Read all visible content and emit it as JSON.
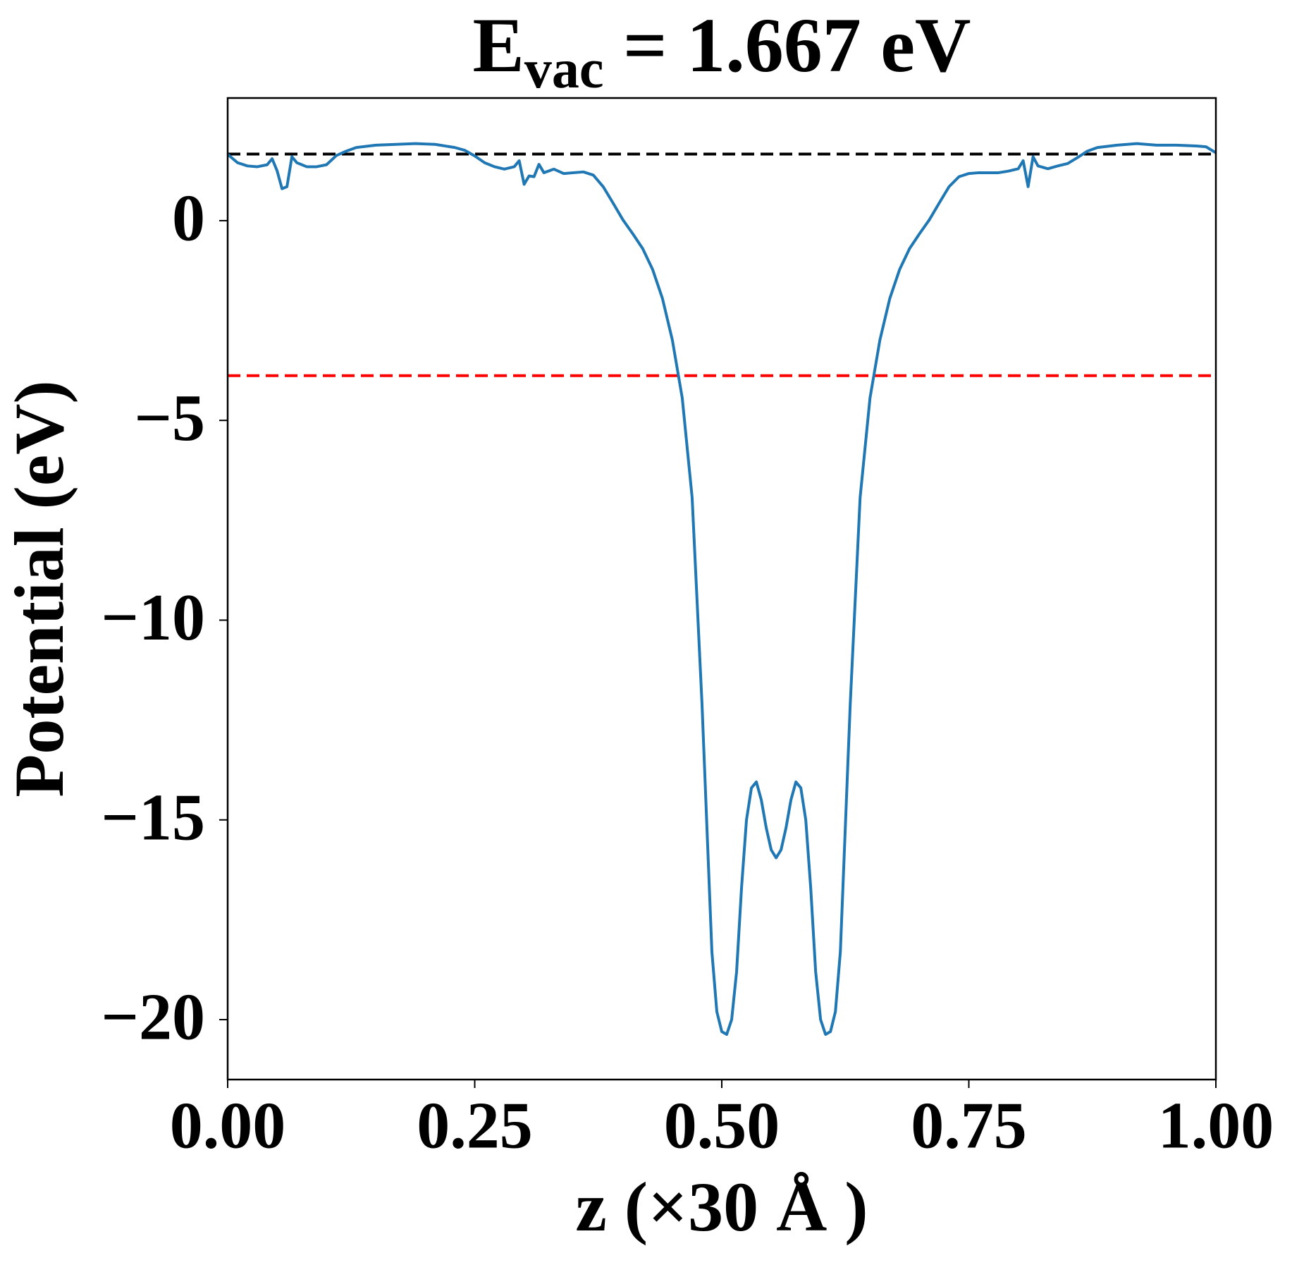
{
  "chart_data": {
    "type": "line",
    "title": {
      "base": "E",
      "sub": "vac",
      "rest": " = 1.667 eV"
    },
    "x_label": "z (×30 Å )",
    "y_label": "Potential (eV)",
    "x": [
      0,
      0.01,
      0.02,
      0.03,
      0.04,
      0.045,
      0.05,
      0.055,
      0.06,
      0.065,
      0.07,
      0.08,
      0.09,
      0.1,
      0.11,
      0.12,
      0.13,
      0.15,
      0.17,
      0.19,
      0.21,
      0.23,
      0.24,
      0.25,
      0.26,
      0.27,
      0.28,
      0.29,
      0.295,
      0.3,
      0.305,
      0.31,
      0.315,
      0.32,
      0.33,
      0.34,
      0.35,
      0.36,
      0.37,
      0.38,
      0.39,
      0.4,
      0.41,
      0.42,
      0.43,
      0.44,
      0.45,
      0.46,
      0.47,
      0.48,
      0.485,
      0.49,
      0.495,
      0.5,
      0.505,
      0.51,
      0.515,
      0.52,
      0.525,
      0.53,
      0.535,
      0.54,
      0.545,
      0.55,
      0.555,
      0.56,
      0.565,
      0.57,
      0.575,
      0.58,
      0.585,
      0.59,
      0.595,
      0.6,
      0.605,
      0.61,
      0.615,
      0.62,
      0.625,
      0.63,
      0.64,
      0.65,
      0.66,
      0.67,
      0.68,
      0.69,
      0.7,
      0.71,
      0.72,
      0.73,
      0.74,
      0.75,
      0.76,
      0.78,
      0.79,
      0.8,
      0.805,
      0.81,
      0.815,
      0.82,
      0.83,
      0.84,
      0.85,
      0.86,
      0.87,
      0.88,
      0.9,
      0.92,
      0.94,
      0.96,
      0.98,
      0.99,
      1.0
    ],
    "series": [
      {
        "color": "#1f77b4",
        "values": [
          1.66,
          1.45,
          1.37,
          1.35,
          1.4,
          1.55,
          1.25,
          0.8,
          0.85,
          1.6,
          1.45,
          1.35,
          1.35,
          1.4,
          1.63,
          1.74,
          1.83,
          1.89,
          1.91,
          1.93,
          1.91,
          1.83,
          1.76,
          1.62,
          1.45,
          1.35,
          1.29,
          1.35,
          1.5,
          0.91,
          1.12,
          1.1,
          1.41,
          1.2,
          1.29,
          1.18,
          1.2,
          1.22,
          1.14,
          0.85,
          0.44,
          0.02,
          -0.33,
          -0.7,
          -1.22,
          -1.95,
          -2.99,
          -4.44,
          -6.93,
          -12.1,
          -15.2,
          -18.3,
          -19.8,
          -20.3,
          -20.37,
          -20.0,
          -18.8,
          -16.7,
          -15.0,
          -14.2,
          -14.05,
          -14.5,
          -15.2,
          -15.75,
          -15.95,
          -15.75,
          -15.2,
          -14.5,
          -14.05,
          -14.2,
          -15.0,
          -16.7,
          -18.8,
          -20.0,
          -20.37,
          -20.3,
          -19.8,
          -18.3,
          -15.2,
          -12.1,
          -6.93,
          -4.44,
          -2.99,
          -1.95,
          -1.22,
          -0.7,
          -0.33,
          0.02,
          0.44,
          0.85,
          1.1,
          1.18,
          1.2,
          1.2,
          1.24,
          1.3,
          1.5,
          0.85,
          1.6,
          1.37,
          1.3,
          1.37,
          1.43,
          1.58,
          1.74,
          1.83,
          1.89,
          1.93,
          1.89,
          1.89,
          1.87,
          1.85,
          1.7
        ]
      }
    ],
    "hlines": [
      {
        "value": 1.667,
        "color": "#000000"
      },
      {
        "value": -3.88,
        "color": "#ff0000"
      }
    ],
    "xlim": [
      0,
      1
    ],
    "ylim": [
      -21.5,
      3.07
    ],
    "xticks": [
      {
        "value": 0,
        "label": "0.00"
      },
      {
        "value": 0.25,
        "label": "0.25"
      },
      {
        "value": 0.5,
        "label": "0.50"
      },
      {
        "value": 0.75,
        "label": "0.75"
      },
      {
        "value": 1,
        "label": "1.00"
      }
    ],
    "yticks": [
      0,
      {
        "value": -5,
        "label": "−5"
      },
      {
        "value": -10,
        "label": "−10"
      },
      {
        "value": -15,
        "label": "−15"
      },
      {
        "value": -20,
        "label": "−20"
      }
    ],
    "grid": false
  }
}
